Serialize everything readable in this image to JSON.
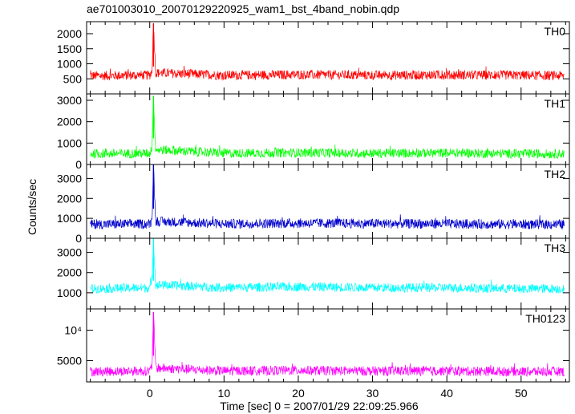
{
  "chart_data": {
    "type": "line",
    "title": "ae701003010_20070129220925_wam1_bst_4band_nobin.qdp",
    "xlabel": "Time [sec] 0 = 2007/01/29 22:09:25.966",
    "ylabel": "Counts/sec",
    "xlim": [
      -8.5,
      56.5
    ],
    "x_ticks": [
      0,
      10,
      20,
      30,
      40,
      50
    ],
    "grid": false,
    "panels": [
      {
        "name": "TH0",
        "color": "#ff0000",
        "ylim": [
          0,
          2400
        ],
        "y_ticks": [
          500,
          1000,
          1500,
          2000
        ],
        "y_tick_labels": [
          "500",
          "1000",
          "1500",
          "2000"
        ],
        "series": [
          {
            "x": [
              -8,
              0,
              0.3,
              0.5,
              0.8,
              10,
              20,
              30,
              40,
              50,
              55.8
            ],
            "y": [
              600,
              620,
              750,
              2350,
              700,
              620,
              640,
              620,
              630,
              620,
              600
            ]
          }
        ]
      },
      {
        "name": "TH1",
        "color": "#00ff00",
        "ylim": [
          0,
          3300
        ],
        "y_ticks": [
          0,
          1000,
          2000,
          3000
        ],
        "y_tick_labels": [
          "0",
          "1000",
          "2000",
          "3000"
        ],
        "series": [
          {
            "x": [
              -8,
              0,
              0.3,
              0.5,
              0.8,
              10,
              20,
              30,
              40,
              50,
              55.8
            ],
            "y": [
              500,
              520,
              800,
              3200,
              700,
              520,
              550,
              520,
              540,
              500,
              500
            ]
          }
        ]
      },
      {
        "name": "TH2",
        "color": "#0000cc",
        "ylim": [
          0,
          3700
        ],
        "y_ticks": [
          0,
          1000,
          2000,
          3000
        ],
        "y_tick_labels": [
          "0",
          "1000",
          "2000",
          "3000"
        ],
        "series": [
          {
            "x": [
              -8,
              0,
              0.3,
              0.5,
              0.8,
              10,
              20,
              30,
              40,
              50,
              55.8
            ],
            "y": [
              700,
              720,
              900,
              3700,
              850,
              720,
              760,
              740,
              720,
              700,
              700
            ]
          }
        ]
      },
      {
        "name": "TH3",
        "color": "#00ffff",
        "ylim": [
          200,
          3700
        ],
        "y_ticks": [
          1000,
          2000,
          3000
        ],
        "y_tick_labels": [
          "1000",
          "2000",
          "3000"
        ],
        "series": [
          {
            "x": [
              -8,
              0,
              0.3,
              0.5,
              0.8,
              10,
              20,
              30,
              40,
              50,
              55.8
            ],
            "y": [
              1200,
              1250,
              1500,
              3700,
              1400,
              1250,
              1300,
              1250,
              1250,
              1200,
              1200
            ]
          }
        ]
      },
      {
        "name": "TH0123",
        "color": "#ff00ff",
        "ylim": [
          1500,
          13500
        ],
        "y_ticks": [
          5000,
          10000
        ],
        "y_tick_labels": [
          "5000",
          "10⁴"
        ],
        "series": [
          {
            "x": [
              -8,
              0,
              0.3,
              0.5,
              0.8,
              10,
              20,
              30,
              40,
              50,
              55.8
            ],
            "y": [
              3200,
              3300,
              4000,
              13000,
              3800,
              3300,
              3400,
              3300,
              3300,
              3200,
              3200
            ]
          }
        ]
      }
    ]
  }
}
